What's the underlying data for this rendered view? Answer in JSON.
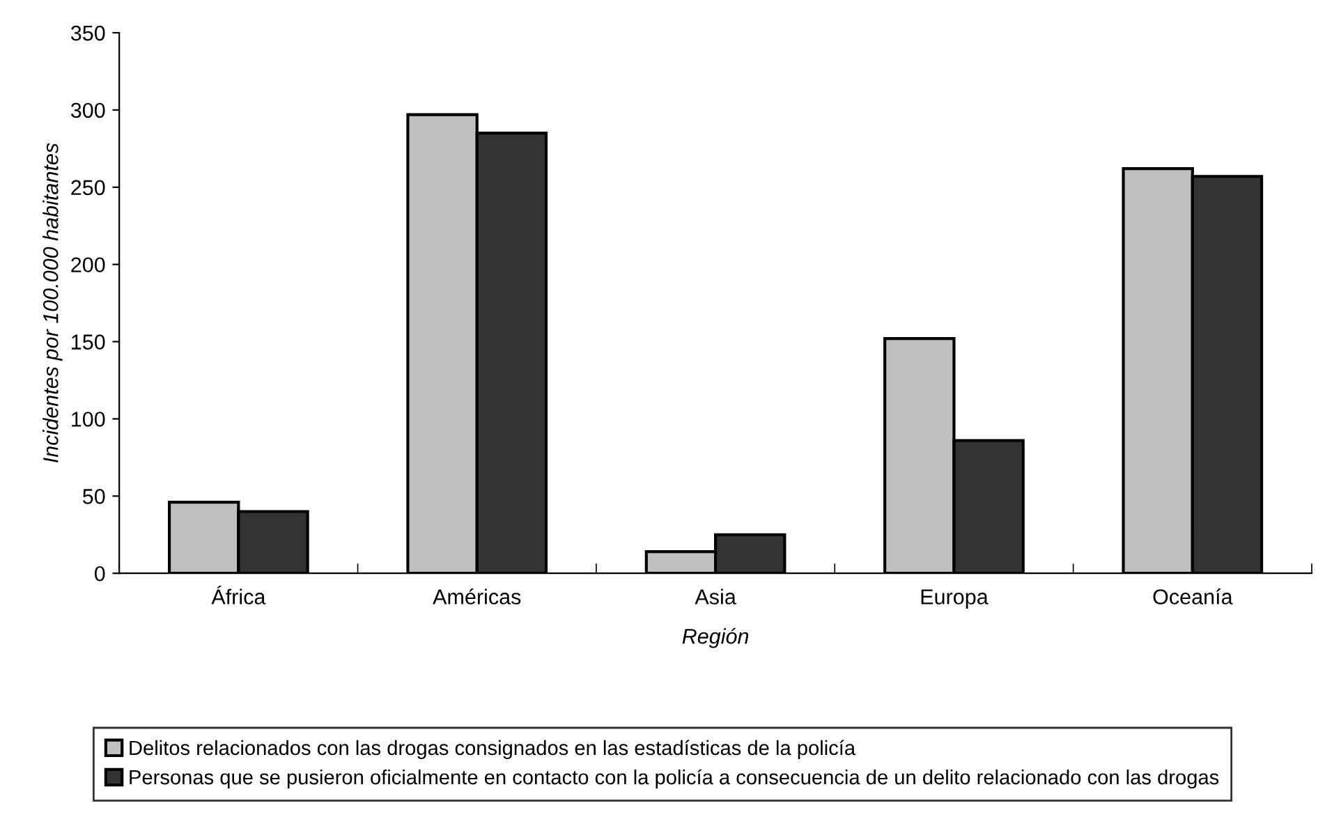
{
  "chart_data": {
    "type": "bar",
    "xlabel": "Región",
    "ylabel": "Incidentes por 100.000 habitantes",
    "categories": [
      "África",
      "Américas",
      "Asia",
      "Europa",
      "Oceanía"
    ],
    "series": [
      {
        "name": "Delitos relacionados con las drogas consignados en las estadísticas de la policía",
        "color": "#c0c0c0",
        "values": [
          46,
          297,
          14,
          152,
          262
        ]
      },
      {
        "name": "Personas que se pusieron oficialmente en contacto con la policía a consecuencia de un delito relacionado con las drogas",
        "color": "#333333",
        "values": [
          40,
          285,
          25,
          86,
          257
        ]
      }
    ],
    "ylim": [
      0,
      350
    ],
    "yticks": [
      0,
      50,
      100,
      150,
      200,
      250,
      300,
      350
    ],
    "grid": false,
    "legend": "bottom"
  }
}
